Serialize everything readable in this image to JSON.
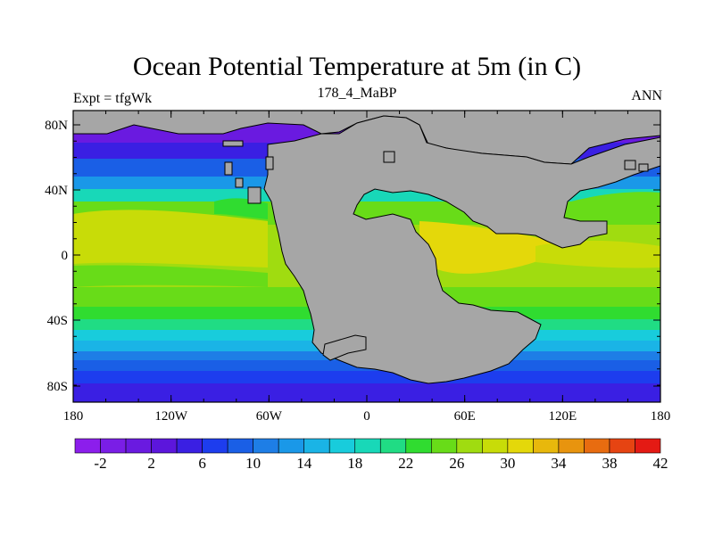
{
  "title": "Ocean Potential Temperature at 5m (in C)",
  "left_label": "Expt = tfgWk",
  "center_label": "178_4_MaBP",
  "right_label": "ANN",
  "land_color": "#a6a6a6",
  "x_axis": {
    "ticks": [
      "180",
      "120W",
      "60W",
      "0",
      "60E",
      "120E",
      "180"
    ]
  },
  "y_axis": {
    "ticks": [
      "80N",
      "40N",
      "0",
      "40S",
      "80S"
    ]
  },
  "colorbar": {
    "colors": [
      "#8c1eec",
      "#7a1ee6",
      "#6a1ae0",
      "#5c16dc",
      "#3a1fe3",
      "#1d3dee",
      "#1a5fe6",
      "#1e7ee6",
      "#1a98e8",
      "#1ab4e6",
      "#18ccdc",
      "#18d8b8",
      "#20dc84",
      "#30dc30",
      "#68dc18",
      "#a0dc10",
      "#c8dc08",
      "#e4d80a",
      "#e8b80c",
      "#e8940e",
      "#e86c10",
      "#e64412",
      "#e41a14"
    ],
    "labels": [
      "-2",
      "2",
      "6",
      "10",
      "14",
      "18",
      "22",
      "26",
      "30",
      "34",
      "38",
      "42"
    ]
  }
}
